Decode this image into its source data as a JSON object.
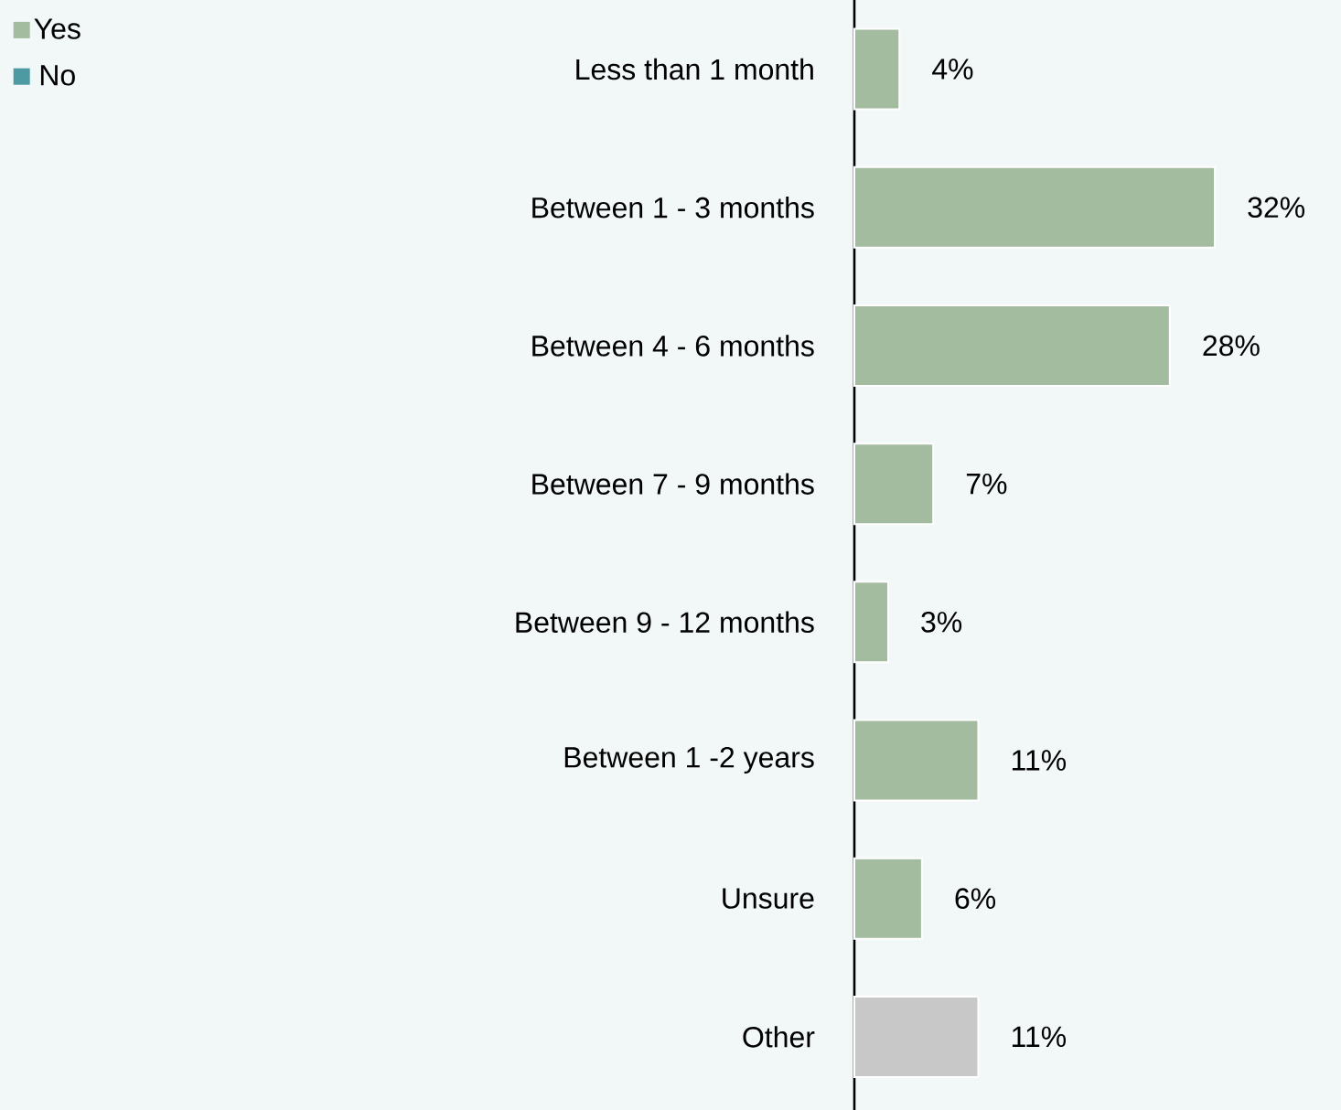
{
  "chart_data": {
    "type": "bar",
    "orientation": "horizontal",
    "categories": [
      "Less than 1 month",
      "Between 1 - 3 months",
      "Between 4 - 6 months",
      "Between 7 - 9 months",
      "Between 9 - 12 months",
      "Between 1 -2 years",
      "Unsure",
      "Other"
    ],
    "series": [
      {
        "name": "Yes",
        "color": "#a3bb9f",
        "colors": [
          "#a3bb9f",
          "#a3bb9f",
          "#a3bb9f",
          "#a3bb9f",
          "#a3bb9f",
          "#a3bb9f",
          "#a3bb9f",
          "#c8c8c8"
        ],
        "values": [
          4,
          32,
          28,
          7,
          3,
          11,
          6,
          11
        ],
        "value_labels": [
          "4%",
          "32%",
          "28%",
          "7%",
          "3%",
          "11%",
          "6%",
          "11%"
        ]
      },
      {
        "name": "No",
        "color": "#4e9aa3",
        "values": [
          null,
          null,
          null,
          null,
          null,
          null,
          null,
          null
        ]
      }
    ],
    "legend": "top left"
  }
}
